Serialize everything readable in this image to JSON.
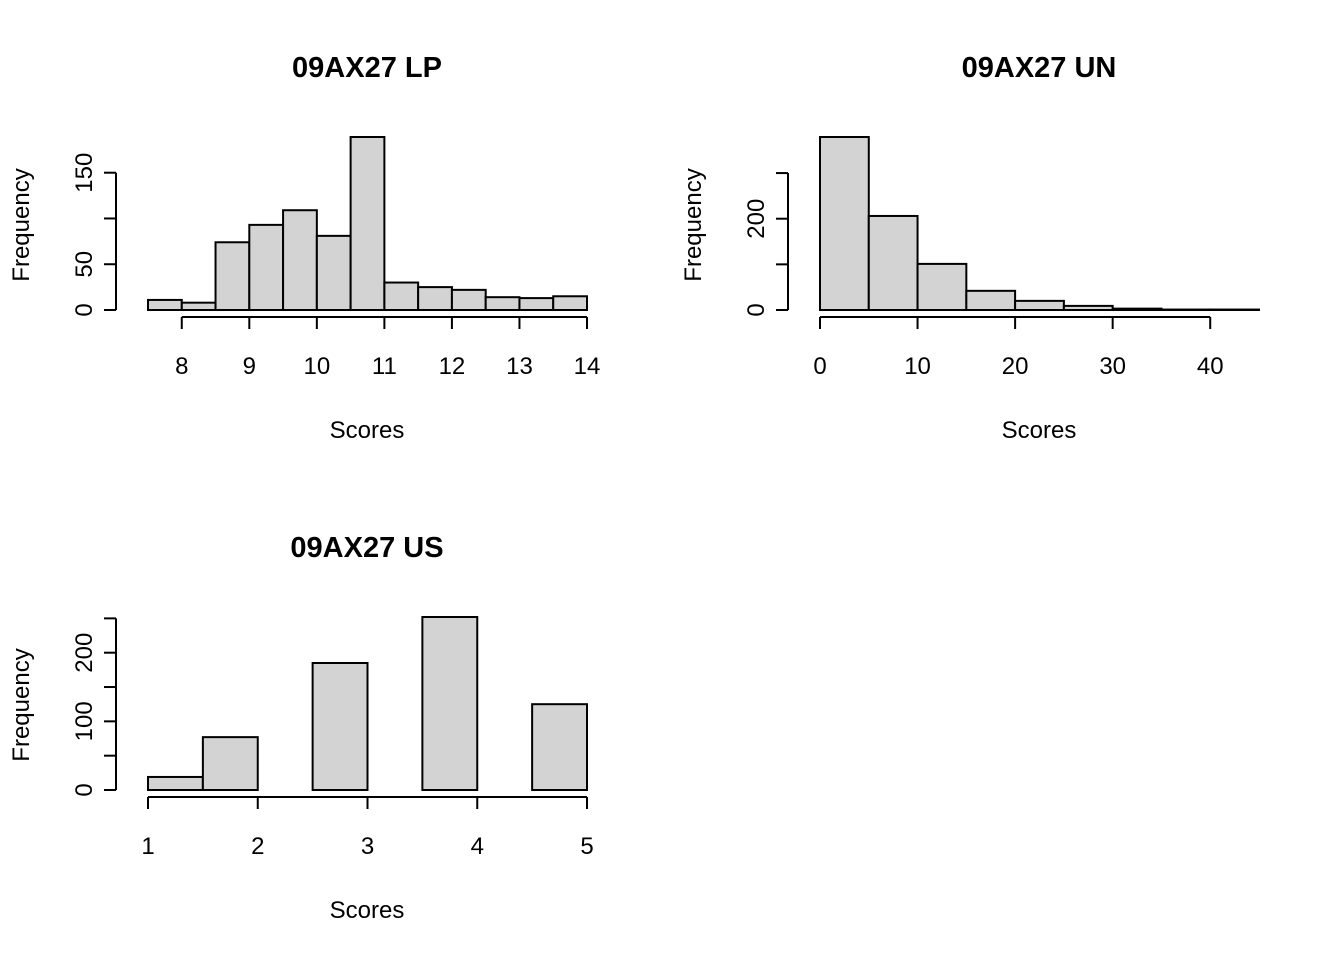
{
  "chart_data": [
    {
      "type": "bar",
      "title": "09AX27 LP",
      "xlabel": "Scores",
      "ylabel": "Frequency",
      "bar_color": "#d3d3d3",
      "bins": [
        [
          7.5,
          8
        ],
        [
          8,
          8.5
        ],
        [
          8.5,
          9
        ],
        [
          9,
          9.5
        ],
        [
          9.5,
          10
        ],
        [
          10,
          10.5
        ],
        [
          10.5,
          11
        ],
        [
          11,
          11.5
        ],
        [
          11.5,
          12
        ],
        [
          12,
          12.5
        ],
        [
          12.5,
          13
        ],
        [
          13,
          13.5
        ],
        [
          13.5,
          14
        ]
      ],
      "values": [
        11,
        8,
        74,
        93,
        109,
        81,
        189,
        30,
        25,
        22,
        14,
        13,
        15
      ],
      "xlim": [
        7.5,
        14
      ],
      "ylim": [
        0,
        189
      ],
      "xticks": [
        "8",
        "9",
        "10",
        "11",
        "12",
        "13",
        "14"
      ],
      "yticks": [
        "0",
        "50",
        "150"
      ],
      "yticks_unlabeled": [
        0,
        50,
        100,
        150
      ]
    },
    {
      "type": "bar",
      "title": "09AX27 UN",
      "xlabel": "Scores",
      "ylabel": "Frequency",
      "bar_color": "#d3d3d3",
      "bins": [
        [
          0,
          5
        ],
        [
          5,
          10
        ],
        [
          10,
          15
        ],
        [
          15,
          20
        ],
        [
          20,
          25
        ],
        [
          25,
          30
        ],
        [
          30,
          35
        ],
        [
          35,
          40
        ],
        [
          40,
          45
        ]
      ],
      "values": [
        379,
        206,
        101,
        42,
        20,
        9,
        3,
        1,
        1
      ],
      "xlim": [
        0,
        45
      ],
      "ylim": [
        0,
        379
      ],
      "xticks": [
        "0",
        "10",
        "20",
        "30",
        "40"
      ],
      "yticks": [
        "0",
        "200"
      ],
      "yticks_unlabeled": [
        0,
        100,
        200,
        300
      ]
    },
    {
      "type": "bar",
      "title": "09AX27 US",
      "xlabel": "Scores",
      "ylabel": "Frequency",
      "bar_color": "#d3d3d3",
      "bins": [
        [
          1,
          1.5
        ],
        [
          1.5,
          2
        ],
        [
          2,
          2.5
        ],
        [
          2.5,
          3
        ],
        [
          3,
          3.5
        ],
        [
          3.5,
          4
        ],
        [
          4,
          4.5
        ],
        [
          4.5,
          5
        ]
      ],
      "values": [
        19,
        77,
        0,
        185,
        0,
        252,
        0,
        125
      ],
      "xlim": [
        1,
        5
      ],
      "ylim": [
        0,
        252
      ],
      "xticks": [
        "1",
        "2",
        "3",
        "4",
        "5"
      ],
      "yticks": [
        "0",
        "100",
        "200"
      ],
      "yticks_unlabeled": [
        0,
        50,
        100,
        150,
        200,
        250
      ]
    }
  ]
}
